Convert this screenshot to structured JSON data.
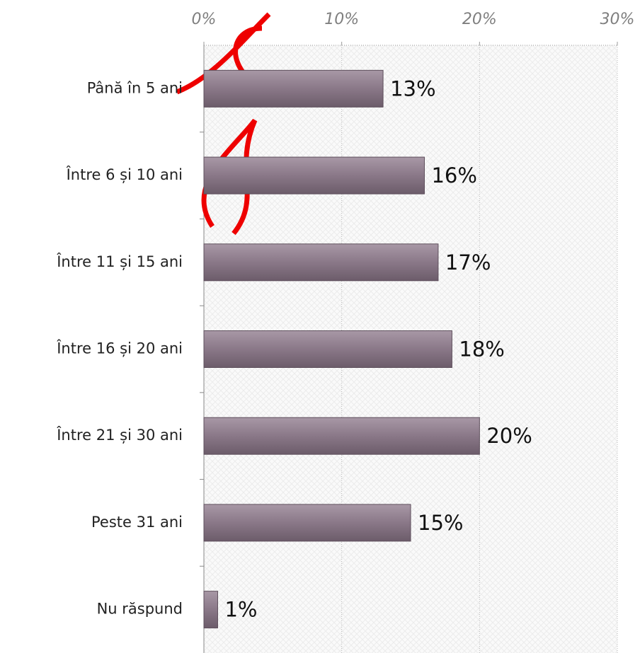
{
  "chart_data": {
    "type": "bar",
    "orientation": "horizontal",
    "categories": [
      "Până în 5 ani",
      "Între 6 și 10 ani",
      "Între 11 și 15 ani",
      "Între 16 și 20 ani",
      "Între 21 și 30 ani",
      "Peste 31 ani",
      "Nu răspund"
    ],
    "values": [
      13,
      16,
      17,
      18,
      20,
      15,
      1
    ],
    "value_labels": [
      "13%",
      "16%",
      "17%",
      "18%",
      "20%",
      "15%",
      "1%"
    ],
    "color": "#8a7888",
    "xlim": [
      0,
      30
    ],
    "xticks": [
      {
        "value": 0,
        "label": "0%"
      },
      {
        "value": 10,
        "label": "10%"
      },
      {
        "value": 20,
        "label": "20%"
      },
      {
        "value": 30,
        "label": "30%"
      }
    ],
    "grid": true
  }
}
